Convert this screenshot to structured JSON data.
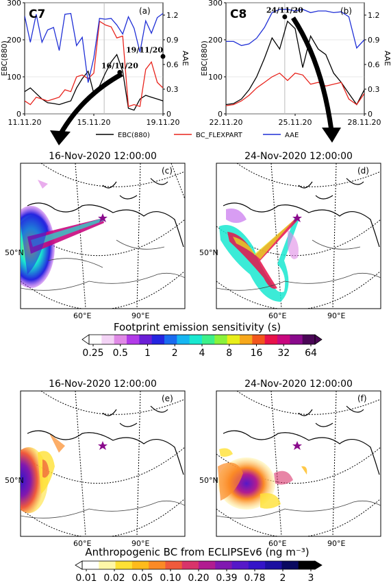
{
  "chart_data": [
    {
      "type": "line",
      "panel": "(a)",
      "case_label": "C7",
      "ylabel_left": "EBC(880)",
      "ylabel_right": "AAE",
      "ylim_left": [
        0,
        300
      ],
      "ylim_right": [
        0,
        1.35
      ],
      "yticks_left": [
        "0",
        "100",
        "200",
        "300"
      ],
      "yticks_right": [
        "0",
        "0.3",
        "0.6",
        "0.9",
        "1.2"
      ],
      "xlim": [
        0,
        8
      ],
      "xticks": [
        {
          "pos": 0,
          "label": "11.11.20"
        },
        {
          "pos": 4,
          "label": "15.11.20"
        },
        {
          "pos": 8,
          "label": "19.11.20"
        }
      ],
      "vline": 4.6,
      "annotations": [
        {
          "text": "16/11/20",
          "x": 5.5,
          "y": 112
        },
        {
          "text": "19/11/20",
          "x": 8.0,
          "y": 155
        }
      ],
      "series": [
        {
          "name": "EBC(880)",
          "color": "#000000",
          "axis": "left",
          "x": [
            0,
            0.33,
            0.67,
            1,
            1.33,
            1.67,
            2,
            2.33,
            2.67,
            3,
            3.33,
            3.67,
            4,
            4.33,
            4.67,
            5,
            5.33,
            5.67,
            6,
            6.33,
            6.67,
            7,
            7.33,
            7.67,
            8
          ],
          "y": [
            60,
            70,
            55,
            40,
            30,
            28,
            25,
            30,
            35,
            70,
            95,
            115,
            55,
            75,
            110,
            140,
            160,
            115,
            15,
            10,
            40,
            50,
            45,
            40,
            35
          ]
        },
        {
          "name": "BC_FLEXPART",
          "color": "#e8231c",
          "axis": "left",
          "x": [
            0,
            0.33,
            0.67,
            1,
            1.33,
            1.67,
            2,
            2.33,
            2.67,
            3,
            3.33,
            3.67,
            4,
            4.33,
            4.67,
            5,
            5.33,
            5.67,
            6,
            6.33,
            6.67,
            7,
            7.33,
            7.67,
            8
          ],
          "y": [
            35,
            25,
            45,
            40,
            35,
            40,
            45,
            65,
            60,
            100,
            105,
            95,
            110,
            250,
            240,
            235,
            205,
            210,
            20,
            25,
            20,
            120,
            140,
            85,
            70
          ]
        },
        {
          "name": "AAE",
          "color": "#1f2fd6",
          "axis": "right",
          "x": [
            0,
            0.33,
            0.67,
            1,
            1.33,
            1.67,
            2,
            2.33,
            2.67,
            3,
            3.33,
            3.67,
            4,
            4.33,
            4.67,
            5,
            5.33,
            5.67,
            6,
            6.33,
            6.67,
            7,
            7.33,
            7.67,
            8
          ],
          "y": [
            1.19,
            0.87,
            1.21,
            0.87,
            1.02,
            1.05,
            0.77,
            1.21,
            1.22,
            0.83,
            0.93,
            0.38,
            0.68,
            1.16,
            1.15,
            1.16,
            1.08,
            0.97,
            1.18,
            1.04,
            0.75,
            1.13,
            0.98,
            1.17,
            1.22
          ]
        }
      ]
    },
    {
      "type": "line",
      "panel": "(b)",
      "case_label": "C8",
      "ylabel_left": "EBC(880)",
      "ylabel_right": "AAE",
      "ylim_left": [
        0,
        300
      ],
      "ylim_right": [
        0,
        1.35
      ],
      "yticks_left": [
        "0",
        "100",
        "200",
        "300"
      ],
      "yticks_right": [
        "0",
        "0.3",
        "0.6",
        "0.9",
        "1.2"
      ],
      "xlim": [
        0,
        6
      ],
      "xticks": [
        {
          "pos": 0,
          "label": "22.11.20"
        },
        {
          "pos": 3,
          "label": "25.11.20"
        },
        {
          "pos": 6,
          "label": "28.11.20"
        }
      ],
      "vline": 2.55,
      "annotations": [
        {
          "text": "24/11/20",
          "x": 2.55,
          "y": 262
        }
      ],
      "series": [
        {
          "name": "EBC(880)",
          "color": "#000000",
          "axis": "left",
          "x": [
            0,
            0.33,
            0.67,
            1,
            1.33,
            1.67,
            2,
            2.33,
            2.67,
            3,
            3.33,
            3.67,
            4,
            4.33,
            4.67,
            5,
            5.33,
            5.67,
            6
          ],
          "y": [
            25,
            28,
            40,
            65,
            100,
            150,
            205,
            175,
            250,
            230,
            125,
            210,
            175,
            160,
            110,
            85,
            55,
            25,
            65
          ]
        },
        {
          "name": "BC_FLEXPART",
          "color": "#e8231c",
          "axis": "left",
          "x": [
            0,
            0.33,
            0.67,
            1,
            1.33,
            1.67,
            2,
            2.33,
            2.67,
            3,
            3.33,
            3.67,
            4,
            4.33,
            4.67,
            5,
            5.33,
            5.67,
            6
          ],
          "y": [
            22,
            25,
            35,
            50,
            70,
            85,
            100,
            110,
            90,
            110,
            105,
            80,
            85,
            75,
            80,
            85,
            40,
            25,
            55
          ]
        },
        {
          "name": "AAE",
          "color": "#1f2fd6",
          "axis": "right",
          "x": [
            0,
            0.33,
            0.67,
            1,
            1.33,
            1.67,
            2,
            2.33,
            2.67,
            3,
            3.33,
            3.67,
            4,
            4.33,
            4.67,
            5,
            5.33,
            5.67,
            6
          ],
          "y": [
            0.88,
            0.88,
            0.83,
            0.85,
            0.92,
            1.05,
            1.23,
            1.27,
            1.27,
            1.25,
            1.27,
            1.23,
            1.25,
            1.25,
            1.23,
            1.24,
            1.18,
            0.8,
            0.9
          ]
        }
      ]
    },
    {
      "type": "heatmap",
      "subtype": "map",
      "panel": "(c)",
      "title": "16-Nov-2020 12:00:00",
      "lat_label": "50°N",
      "lon_labels": [
        "60°E",
        "90°E"
      ],
      "quantity": "Footprint emission sensitivity (s)"
    },
    {
      "type": "heatmap",
      "subtype": "map",
      "panel": "(d)",
      "title": "24-Nov-2020 12:00:00",
      "lat_label": "50°N",
      "lon_labels": [
        "60°E",
        "90°E"
      ],
      "quantity": "Footprint emission sensitivity (s)"
    },
    {
      "type": "heatmap",
      "subtype": "map",
      "panel": "(e)",
      "title": "16-Nov-2020 12:00:00",
      "lat_label": "50°N",
      "lon_labels": [
        "60°E",
        "90°E"
      ],
      "quantity": "Anthropogenic BC from ECLIPSEv6 (ng m⁻³)"
    },
    {
      "type": "heatmap",
      "subtype": "map",
      "panel": "(f)",
      "title": "24-Nov-2020 12:00:00",
      "lat_label": "50°N",
      "lon_labels": [
        "60°E",
        "90°E"
      ],
      "quantity": "Anthropogenic BC from ECLIPSEv6 (ng m⁻³)"
    }
  ],
  "legend": {
    "items": [
      {
        "name": "EBC(880)",
        "color": "#000000"
      },
      {
        "name": "BC_FLEXPART",
        "color": "#e8231c"
      },
      {
        "name": "AAE",
        "color": "#1f2fd6"
      }
    ]
  },
  "colorbars": [
    {
      "label": "Footprint emission sensitivity (s)",
      "ticks": [
        "0.25",
        "0.5",
        "1",
        "2",
        "4",
        "8",
        "16",
        "32",
        "64"
      ],
      "colors": [
        "#ffffff",
        "#f3d3f5",
        "#e08ae6",
        "#b23be8",
        "#6a1ed6",
        "#2424e0",
        "#1a6bf0",
        "#16b6f2",
        "#19e8d0",
        "#3cf08a",
        "#8af23b",
        "#e8ee1a",
        "#f7a81b",
        "#f2561c",
        "#e8124a",
        "#c8087e",
        "#8a0a8c",
        "#4a0656"
      ]
    },
    {
      "label": "Anthropogenic BC from ECLIPSEv6 (ng m⁻³)",
      "ticks": [
        "0.01",
        "0.02",
        "0.05",
        "0.10",
        "0.20",
        "0.39",
        "0.78",
        "2",
        "3"
      ],
      "colors": [
        "#ffffff",
        "#fff7a8",
        "#ffe135",
        "#ffbb1c",
        "#fb8a26",
        "#f05a3c",
        "#d8346a",
        "#b11c90",
        "#8018b0",
        "#5618c8",
        "#3414c8",
        "#1c10a0",
        "#0a0a60",
        "#000000"
      ]
    }
  ]
}
